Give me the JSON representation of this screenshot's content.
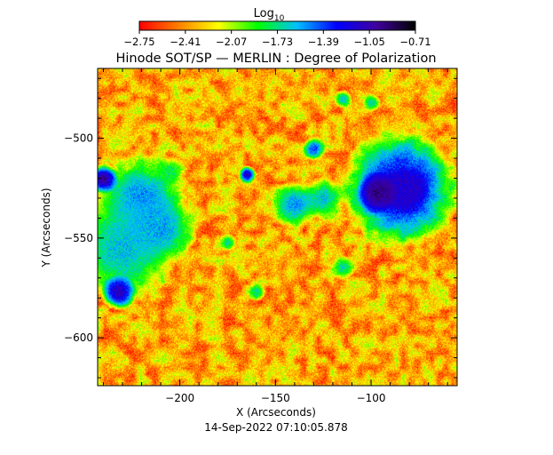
{
  "chart_data": {
    "type": "heatmap",
    "title": "Hinode SOT/SP — MERLIN : Degree of Polarization",
    "xlabel": "X (Arcseconds)",
    "ylabel": "Y (Arcseconds)",
    "timestamp": "14-Sep-2022 07:10:05.878",
    "xlim": [
      -243,
      -55
    ],
    "ylim": [
      -624,
      -465
    ],
    "x_ticks": [
      -200,
      -150,
      -100
    ],
    "y_ticks": [
      -500,
      -550,
      -600
    ],
    "colorbar": {
      "label": "Log",
      "label_subscript": "10",
      "range": [
        -2.75,
        -0.71
      ],
      "ticks": [
        "-2.75",
        "-2.41",
        "-2.07",
        "-1.73",
        "-1.39",
        "-1.05",
        "-0.71"
      ],
      "colormap": [
        "#ff0000",
        "#ff8000",
        "#ffff00",
        "#00ff00",
        "#00c0ff",
        "#0000ff",
        "#4000a0",
        "#000000"
      ]
    },
    "features": [
      {
        "type": "sunspot",
        "x": -82,
        "y": -526,
        "r": 8,
        "value": -0.75
      },
      {
        "type": "strong-network",
        "x": -85,
        "y": -525,
        "r": 20,
        "value": -1.15
      },
      {
        "type": "strong-network",
        "x": -97,
        "y": -527,
        "r": 7,
        "value": -0.95
      },
      {
        "type": "strong-network",
        "x": -220,
        "y": -530,
        "r": 15,
        "value": -1.5
      },
      {
        "type": "strong-network",
        "x": -230,
        "y": -555,
        "r": 18,
        "value": -1.6
      },
      {
        "type": "strong-network",
        "x": -210,
        "y": -545,
        "r": 12,
        "value": -1.55
      },
      {
        "type": "strong-network",
        "x": -240,
        "y": -520,
        "r": 5,
        "value": -1.0
      },
      {
        "type": "strong-network",
        "x": -232,
        "y": -577,
        "r": 6,
        "value": -1.1
      },
      {
        "type": "strong-network",
        "x": -140,
        "y": -533,
        "r": 8,
        "value": -1.5
      },
      {
        "type": "strong-network",
        "x": -125,
        "y": -530,
        "r": 7,
        "value": -1.6
      },
      {
        "type": "strong-network",
        "x": -165,
        "y": -518,
        "r": 3,
        "value": -1.1
      },
      {
        "type": "strong-network",
        "x": -130,
        "y": -505,
        "r": 4,
        "value": -1.4
      },
      {
        "type": "strong-network",
        "x": -115,
        "y": -480,
        "r": 3,
        "value": -1.6
      },
      {
        "type": "strong-network",
        "x": -100,
        "y": -482,
        "r": 3,
        "value": -1.7
      },
      {
        "type": "strong-network",
        "x": -175,
        "y": -552,
        "r": 3,
        "value": -1.7
      },
      {
        "type": "strong-network",
        "x": -160,
        "y": -577,
        "r": 3,
        "value": -1.7
      },
      {
        "type": "strong-network",
        "x": -115,
        "y": -565,
        "r": 4,
        "value": -1.7
      },
      {
        "type": "strong-network",
        "x": -205,
        "y": -516,
        "r": 5,
        "value": -1.8
      }
    ],
    "background_value": -2.35
  }
}
